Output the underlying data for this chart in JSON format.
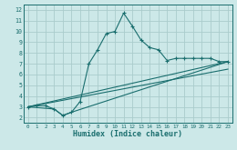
{
  "xlabel": "Humidex (Indice chaleur)",
  "bg_color": "#cce8e8",
  "grid_color": "#aacccc",
  "line_color": "#1a6e6e",
  "xlim": [
    -0.5,
    23.5
  ],
  "ylim": [
    1.5,
    12.5
  ],
  "xticks": [
    0,
    1,
    2,
    3,
    4,
    5,
    6,
    7,
    8,
    9,
    10,
    11,
    12,
    13,
    14,
    15,
    16,
    17,
    18,
    19,
    20,
    21,
    22,
    23
  ],
  "yticks": [
    2,
    3,
    4,
    5,
    6,
    7,
    8,
    9,
    10,
    11,
    12
  ],
  "series1_x": [
    0,
    1,
    2,
    3,
    4,
    5,
    6,
    7,
    8,
    9,
    10,
    11,
    12,
    13,
    14,
    15,
    16,
    17,
    18,
    19,
    20,
    21,
    22,
    23
  ],
  "series1_y": [
    3.0,
    3.1,
    3.1,
    2.8,
    2.2,
    2.5,
    3.5,
    7.0,
    8.3,
    9.8,
    10.0,
    11.7,
    10.5,
    9.2,
    8.5,
    8.3,
    7.3,
    7.5,
    7.5,
    7.5,
    7.5,
    7.5,
    7.2,
    7.2
  ],
  "series2_x": [
    0,
    23
  ],
  "series2_y": [
    3.0,
    7.2
  ],
  "series3_x": [
    0,
    23
  ],
  "series3_y": [
    3.0,
    6.5
  ],
  "series4_x": [
    0,
    3,
    4,
    5,
    23
  ],
  "series4_y": [
    3.0,
    2.8,
    2.2,
    2.5,
    7.2
  ],
  "figwidth": 2.6,
  "figheight": 1.65,
  "dpi": 100
}
